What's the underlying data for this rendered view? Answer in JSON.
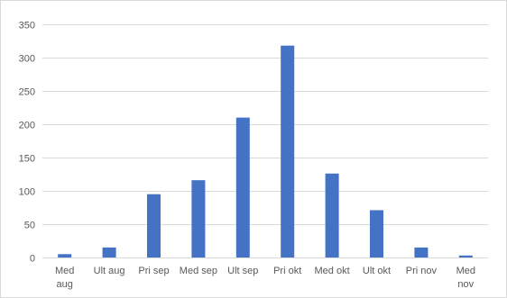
{
  "chart_data": {
    "type": "bar",
    "title": "",
    "xlabel": "",
    "ylabel": "",
    "categories": [
      [
        "Med",
        "aug"
      ],
      [
        "Ult aug"
      ],
      [
        "Pri sep"
      ],
      [
        "Med sep"
      ],
      [
        "Ult sep"
      ],
      [
        "Pri okt"
      ],
      [
        "Med okt"
      ],
      [
        "Ult okt"
      ],
      [
        "Pri nov"
      ],
      [
        "Med",
        "nov"
      ]
    ],
    "values": [
      5,
      15,
      95,
      116,
      210,
      318,
      126,
      71,
      15,
      3
    ],
    "ylim": [
      0,
      350
    ],
    "yticks": [
      0,
      50,
      100,
      150,
      200,
      250,
      300,
      350
    ],
    "grid": true,
    "legend": "none",
    "colors": {
      "bar": "#4472C4",
      "grid": "#d9d9d9",
      "border": "#d9d9d9",
      "text": "#595959"
    }
  }
}
